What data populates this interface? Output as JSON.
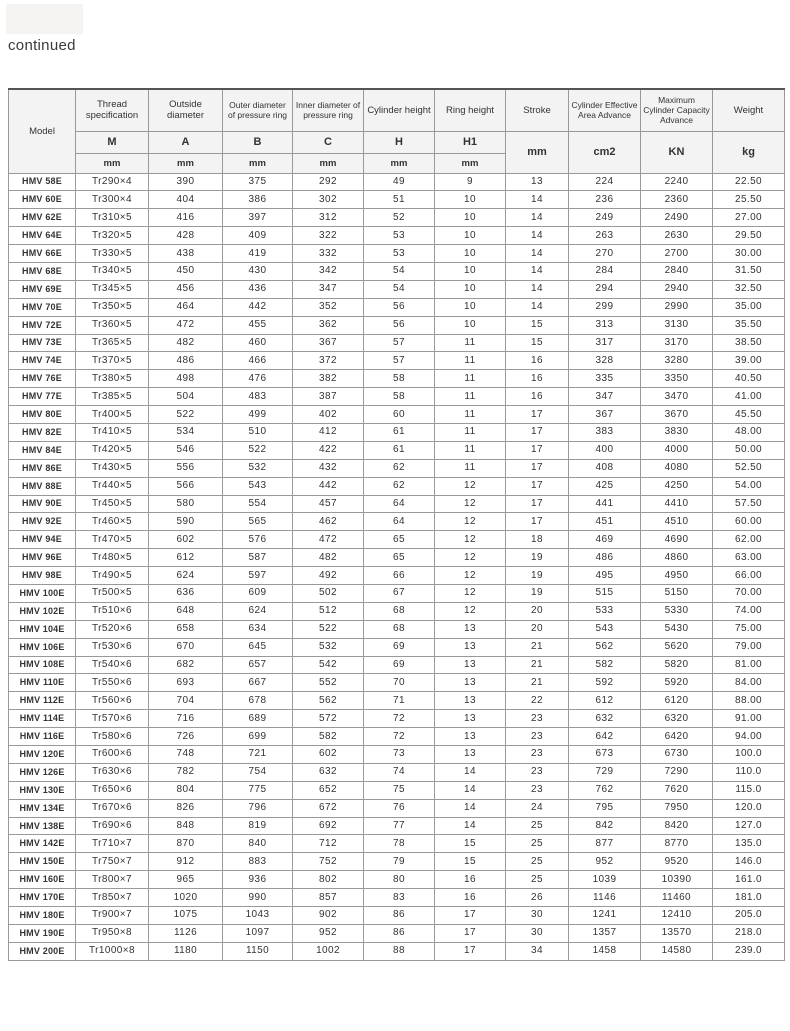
{
  "page": {
    "continued_label": "continued"
  },
  "colors": {
    "header_bg": "#f3f3f4",
    "border": "#999999",
    "border_dark": "#555555",
    "text": "#333333",
    "placeholder_bg": "#f5f4f2"
  },
  "table": {
    "header": {
      "model_label": "Model",
      "columns": [
        {
          "title": "Thread specification",
          "symbol": "M",
          "unit": "mm"
        },
        {
          "title": "Outside diameter",
          "symbol": "A",
          "unit": "mm"
        },
        {
          "title": "Outer diameter of pressure ring",
          "symbol": "B",
          "unit": "mm"
        },
        {
          "title": "Inner diameter of pressure ring",
          "symbol": "C",
          "unit": "mm"
        },
        {
          "title": "Cylinder height",
          "symbol": "H",
          "unit": "mm"
        },
        {
          "title": "Ring height",
          "symbol": "H1",
          "unit": "mm"
        },
        {
          "title": "Stroke",
          "unit": "mm"
        },
        {
          "title": "Cylinder Effective Area Advance",
          "unit": "cm2"
        },
        {
          "title": "Maximum Cylinder Capacity Advance",
          "unit": "KN"
        },
        {
          "title": "Weight",
          "unit": "kg"
        }
      ]
    },
    "rows": [
      [
        "HMV 58E",
        "Tr290×4",
        "390",
        "375",
        "292",
        "49",
        "9",
        "13",
        "224",
        "2240",
        "22.50"
      ],
      [
        "HMV 60E",
        "Tr300×4",
        "404",
        "386",
        "302",
        "51",
        "10",
        "14",
        "236",
        "2360",
        "25.50"
      ],
      [
        "HMV 62E",
        "Tr310×5",
        "416",
        "397",
        "312",
        "52",
        "10",
        "14",
        "249",
        "2490",
        "27.00"
      ],
      [
        "HMV 64E",
        "Tr320×5",
        "428",
        "409",
        "322",
        "53",
        "10",
        "14",
        "263",
        "2630",
        "29.50"
      ],
      [
        "HMV 66E",
        "Tr330×5",
        "438",
        "419",
        "332",
        "53",
        "10",
        "14",
        "270",
        "2700",
        "30.00"
      ],
      [
        "HMV 68E",
        "Tr340×5",
        "450",
        "430",
        "342",
        "54",
        "10",
        "14",
        "284",
        "2840",
        "31.50"
      ],
      [
        "HMV 69E",
        "Tr345×5",
        "456",
        "436",
        "347",
        "54",
        "10",
        "14",
        "294",
        "2940",
        "32.50"
      ],
      [
        "HMV 70E",
        "Tr350×5",
        "464",
        "442",
        "352",
        "56",
        "10",
        "14",
        "299",
        "2990",
        "35.00"
      ],
      [
        "HMV 72E",
        "Tr360×5",
        "472",
        "455",
        "362",
        "56",
        "10",
        "15",
        "313",
        "3130",
        "35.50"
      ],
      [
        "HMV 73E",
        "Tr365×5",
        "482",
        "460",
        "367",
        "57",
        "11",
        "15",
        "317",
        "3170",
        "38.50"
      ],
      [
        "HMV 74E",
        "Tr370×5",
        "486",
        "466",
        "372",
        "57",
        "11",
        "16",
        "328",
        "3280",
        "39.00"
      ],
      [
        "HMV 76E",
        "Tr380×5",
        "498",
        "476",
        "382",
        "58",
        "11",
        "16",
        "335",
        "3350",
        "40.50"
      ],
      [
        "HMV 77E",
        "Tr385×5",
        "504",
        "483",
        "387",
        "58",
        "11",
        "16",
        "347",
        "3470",
        "41.00"
      ],
      [
        "HMV 80E",
        "Tr400×5",
        "522",
        "499",
        "402",
        "60",
        "11",
        "17",
        "367",
        "3670",
        "45.50"
      ],
      [
        "HMV 82E",
        "Tr410×5",
        "534",
        "510",
        "412",
        "61",
        "11",
        "17",
        "383",
        "3830",
        "48.00"
      ],
      [
        "HMV 84E",
        "Tr420×5",
        "546",
        "522",
        "422",
        "61",
        "11",
        "17",
        "400",
        "4000",
        "50.00"
      ],
      [
        "HMV 86E",
        "Tr430×5",
        "556",
        "532",
        "432",
        "62",
        "11",
        "17",
        "408",
        "4080",
        "52.50"
      ],
      [
        "HMV 88E",
        "Tr440×5",
        "566",
        "543",
        "442",
        "62",
        "12",
        "17",
        "425",
        "4250",
        "54.00"
      ],
      [
        "HMV 90E",
        "Tr450×5",
        "580",
        "554",
        "457",
        "64",
        "12",
        "17",
        "441",
        "4410",
        "57.50"
      ],
      [
        "HMV 92E",
        "Tr460×5",
        "590",
        "565",
        "462",
        "64",
        "12",
        "17",
        "451",
        "4510",
        "60.00"
      ],
      [
        "HMV 94E",
        "Tr470×5",
        "602",
        "576",
        "472",
        "65",
        "12",
        "18",
        "469",
        "4690",
        "62.00"
      ],
      [
        "HMV 96E",
        "Tr480×5",
        "612",
        "587",
        "482",
        "65",
        "12",
        "19",
        "486",
        "4860",
        "63.00"
      ],
      [
        "HMV 98E",
        "Tr490×5",
        "624",
        "597",
        "492",
        "66",
        "12",
        "19",
        "495",
        "4950",
        "66.00"
      ],
      [
        "HMV 100E",
        "Tr500×5",
        "636",
        "609",
        "502",
        "67",
        "12",
        "19",
        "515",
        "5150",
        "70.00"
      ],
      [
        "HMV 102E",
        "Tr510×6",
        "648",
        "624",
        "512",
        "68",
        "12",
        "20",
        "533",
        "5330",
        "74.00"
      ],
      [
        "HMV 104E",
        "Tr520×6",
        "658",
        "634",
        "522",
        "68",
        "13",
        "20",
        "543",
        "5430",
        "75.00"
      ],
      [
        "HMV 106E",
        "Tr530×6",
        "670",
        "645",
        "532",
        "69",
        "13",
        "21",
        "562",
        "5620",
        "79.00"
      ],
      [
        "HMV 108E",
        "Tr540×6",
        "682",
        "657",
        "542",
        "69",
        "13",
        "21",
        "582",
        "5820",
        "81.00"
      ],
      [
        "HMV 110E",
        "Tr550×6",
        "693",
        "667",
        "552",
        "70",
        "13",
        "21",
        "592",
        "5920",
        "84.00"
      ],
      [
        "HMV 112E",
        "Tr560×6",
        "704",
        "678",
        "562",
        "71",
        "13",
        "22",
        "612",
        "6120",
        "88.00"
      ],
      [
        "HMV 114E",
        "Tr570×6",
        "716",
        "689",
        "572",
        "72",
        "13",
        "23",
        "632",
        "6320",
        "91.00"
      ],
      [
        "HMV 116E",
        "Tr580×6",
        "726",
        "699",
        "582",
        "72",
        "13",
        "23",
        "642",
        "6420",
        "94.00"
      ],
      [
        "HMV 120E",
        "Tr600×6",
        "748",
        "721",
        "602",
        "73",
        "13",
        "23",
        "673",
        "6730",
        "100.0"
      ],
      [
        "HMV 126E",
        "Tr630×6",
        "782",
        "754",
        "632",
        "74",
        "14",
        "23",
        "729",
        "7290",
        "110.0"
      ],
      [
        "HMV 130E",
        "Tr650×6",
        "804",
        "775",
        "652",
        "75",
        "14",
        "23",
        "762",
        "7620",
        "115.0"
      ],
      [
        "HMV 134E",
        "Tr670×6",
        "826",
        "796",
        "672",
        "76",
        "14",
        "24",
        "795",
        "7950",
        "120.0"
      ],
      [
        "HMV 138E",
        "Tr690×6",
        "848",
        "819",
        "692",
        "77",
        "14",
        "25",
        "842",
        "8420",
        "127.0"
      ],
      [
        "HMV 142E",
        "Tr710×7",
        "870",
        "840",
        "712",
        "78",
        "15",
        "25",
        "877",
        "8770",
        "135.0"
      ],
      [
        "HMV 150E",
        "Tr750×7",
        "912",
        "883",
        "752",
        "79",
        "15",
        "25",
        "952",
        "9520",
        "146.0"
      ],
      [
        "HMV 160E",
        "Tr800×7",
        "965",
        "936",
        "802",
        "80",
        "16",
        "25",
        "1039",
        "10390",
        "161.0"
      ],
      [
        "HMV 170E",
        "Tr850×7",
        "1020",
        "990",
        "857",
        "83",
        "16",
        "26",
        "1146",
        "11460",
        "181.0"
      ],
      [
        "HMV 180E",
        "Tr900×7",
        "1075",
        "1043",
        "902",
        "86",
        "17",
        "30",
        "1241",
        "12410",
        "205.0"
      ],
      [
        "HMV 190E",
        "Tr950×8",
        "1126",
        "1097",
        "952",
        "86",
        "17",
        "30",
        "1357",
        "13570",
        "218.0"
      ],
      [
        "HMV 200E",
        "Tr1000×8",
        "1180",
        "1150",
        "1002",
        "88",
        "17",
        "34",
        "1458",
        "14580",
        "239.0"
      ]
    ]
  }
}
